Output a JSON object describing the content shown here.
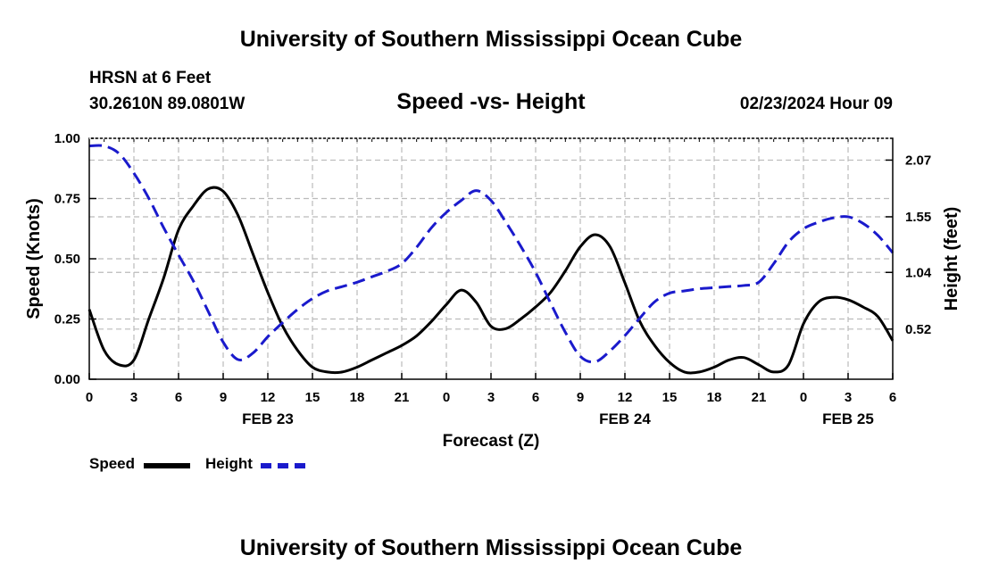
{
  "header": {
    "title": "University of Southern Mississippi Ocean Cube",
    "station": "HRSN at 6 Feet",
    "coords": "30.2610N  89.0801W",
    "subtitle": "Speed -vs- Height",
    "datetime": "02/23/2024 Hour 09"
  },
  "footer": {
    "title": "University of Southern Mississippi Ocean Cube"
  },
  "legend": {
    "speed_label": "Speed",
    "height_label": "Height"
  },
  "colors": {
    "speed": "#000000",
    "height": "#1a1acc",
    "grid": "#bbbbbb"
  },
  "chart_data": {
    "type": "line",
    "title": "Speed -vs- Height",
    "xlabel": "Forecast (Z)",
    "ylabel": "Speed (Knots)",
    "y2label": "Height (feet)",
    "xlim": [
      0,
      54
    ],
    "ylim": [
      0,
      1.0
    ],
    "y2lim": [
      0.06,
      2.27
    ],
    "x_tick_values": [
      0,
      3,
      6,
      9,
      12,
      15,
      18,
      21,
      24,
      27,
      30,
      33,
      36,
      39,
      42,
      45,
      48,
      51,
      54
    ],
    "x_tick_labels": [
      "0",
      "3",
      "6",
      "9",
      "12",
      "15",
      "18",
      "21",
      "0",
      "3",
      "6",
      "9",
      "12",
      "15",
      "18",
      "21",
      "0",
      "3",
      "6"
    ],
    "date_labels": [
      {
        "x": 12,
        "label": "FEB 23"
      },
      {
        "x": 36,
        "label": "FEB 24"
      },
      {
        "x": 51,
        "label": "FEB 25"
      }
    ],
    "y_ticks": [
      0.0,
      0.25,
      0.5,
      0.75,
      1.0
    ],
    "y_tick_labels": [
      "0.00",
      "0.25",
      "0.50",
      "0.75",
      "1.00"
    ],
    "y2_ticks": [
      0.52,
      1.04,
      1.55,
      2.07
    ],
    "y2_tick_labels": [
      "0.52",
      "1.04",
      "1.55",
      "2.07"
    ],
    "grid": true,
    "series": [
      {
        "name": "Speed",
        "axis": "left",
        "style": "solid",
        "x": [
          0,
          1,
          2,
          3,
          4,
          5,
          6,
          7,
          8,
          9,
          10,
          11,
          12,
          13,
          14,
          15,
          16,
          17,
          18,
          19,
          20,
          21,
          22,
          23,
          24,
          25,
          26,
          27,
          28,
          29,
          30,
          31,
          32,
          33,
          34,
          35,
          36,
          37,
          38,
          39,
          40,
          41,
          42,
          43,
          44,
          45,
          46,
          47,
          48,
          49,
          50,
          51,
          52,
          53,
          54
        ],
        "values": [
          0.29,
          0.12,
          0.06,
          0.08,
          0.25,
          0.42,
          0.62,
          0.72,
          0.79,
          0.78,
          0.68,
          0.52,
          0.36,
          0.22,
          0.12,
          0.05,
          0.03,
          0.03,
          0.05,
          0.08,
          0.11,
          0.14,
          0.18,
          0.24,
          0.31,
          0.37,
          0.32,
          0.22,
          0.21,
          0.25,
          0.3,
          0.36,
          0.45,
          0.55,
          0.6,
          0.55,
          0.4,
          0.24,
          0.14,
          0.07,
          0.03,
          0.03,
          0.05,
          0.08,
          0.09,
          0.06,
          0.03,
          0.06,
          0.23,
          0.32,
          0.34,
          0.33,
          0.3,
          0.26,
          0.16
        ]
      },
      {
        "name": "Height",
        "axis": "right",
        "style": "dashed",
        "x": [
          0,
          1,
          2,
          3,
          4,
          5,
          6,
          7,
          8,
          9,
          10,
          11,
          12,
          13,
          14,
          15,
          16,
          17,
          18,
          19,
          20,
          21,
          22,
          23,
          24,
          25,
          26,
          27,
          28,
          29,
          30,
          31,
          32,
          33,
          34,
          35,
          36,
          37,
          38,
          39,
          40,
          41,
          42,
          43,
          44,
          45,
          46,
          47,
          48,
          49,
          50,
          51,
          52,
          53,
          54
        ],
        "values": [
          2.2,
          2.2,
          2.13,
          1.95,
          1.72,
          1.45,
          1.2,
          0.96,
          0.68,
          0.4,
          0.24,
          0.3,
          0.45,
          0.58,
          0.7,
          0.8,
          0.87,
          0.91,
          0.95,
          1.0,
          1.05,
          1.12,
          1.27,
          1.45,
          1.59,
          1.7,
          1.79,
          1.7,
          1.5,
          1.28,
          1.04,
          0.76,
          0.49,
          0.27,
          0.22,
          0.32,
          0.46,
          0.62,
          0.77,
          0.85,
          0.87,
          0.89,
          0.9,
          0.91,
          0.92,
          0.95,
          1.12,
          1.32,
          1.44,
          1.5,
          1.54,
          1.55,
          1.49,
          1.38,
          1.22
        ]
      }
    ]
  }
}
